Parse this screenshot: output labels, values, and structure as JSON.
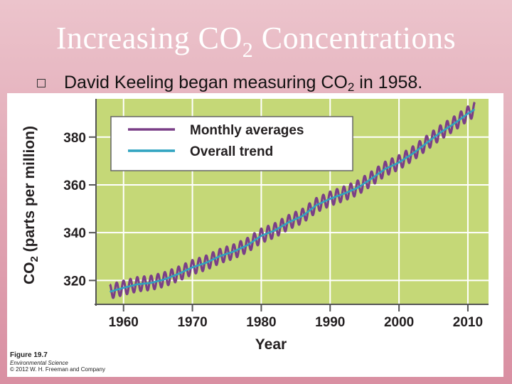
{
  "slide": {
    "title_main": "Increasing CO",
    "title_sub": "2",
    "title_rest": " Concentrations",
    "bullet_main": "David Keeling began measuring CO",
    "bullet_sub": "2",
    "bullet_rest": " in 1958."
  },
  "colors": {
    "plot_bg": "#c5d877",
    "monthly": "#7a3f87",
    "trend": "#2fa3c0",
    "text": "#231f20"
  },
  "caption": {
    "figure": "Figure 19.7",
    "book": "Environmental Science",
    "copyright": "© 2012 W. H. Freeman and Company"
  },
  "chart_data": {
    "type": "line",
    "title": "",
    "xlabel": "Year",
    "ylabel_main": "CO",
    "ylabel_sub": "2",
    "ylabel_rest": " (parts per million)",
    "xlim": [
      1956,
      2013
    ],
    "ylim": [
      310,
      396
    ],
    "xticks": [
      1960,
      1970,
      1980,
      1990,
      2000,
      2010
    ],
    "yticks": [
      320,
      340,
      360,
      380
    ],
    "legend_position": "top-left",
    "seasonal_amplitude": 3,
    "series": [
      {
        "name": "Monthly averages",
        "style": "seasonal",
        "x": [
          1958,
          1960,
          1962,
          1964,
          1966,
          1968,
          1970,
          1972,
          1974,
          1976,
          1978,
          1980,
          1982,
          1984,
          1986,
          1988,
          1990,
          1992,
          1994,
          1996,
          1998,
          2000,
          2002,
          2004,
          2006,
          2008,
          2010,
          2011
        ],
        "y": [
          315.3,
          316.9,
          318.4,
          319.0,
          320.5,
          322.8,
          325.5,
          327.4,
          330.2,
          332.1,
          334.8,
          338.7,
          341.0,
          344.4,
          347.0,
          351.5,
          354.2,
          356.3,
          358.8,
          362.6,
          366.7,
          369.4,
          373.1,
          377.5,
          381.9,
          385.6,
          389.8,
          391.6
        ]
      },
      {
        "name": "Overall trend",
        "style": "smooth",
        "x": [
          1958,
          1960,
          1962,
          1964,
          1966,
          1968,
          1970,
          1972,
          1974,
          1976,
          1978,
          1980,
          1982,
          1984,
          1986,
          1988,
          1990,
          1992,
          1994,
          1996,
          1998,
          2000,
          2002,
          2004,
          2006,
          2008,
          2010,
          2011
        ],
        "y": [
          315.3,
          316.9,
          318.4,
          319.0,
          320.5,
          322.8,
          325.5,
          327.4,
          330.2,
          332.1,
          334.8,
          338.7,
          341.0,
          344.4,
          347.0,
          351.5,
          354.2,
          356.3,
          358.8,
          362.6,
          366.7,
          369.4,
          373.1,
          377.5,
          381.9,
          385.6,
          389.8,
          391.6
        ]
      }
    ]
  }
}
